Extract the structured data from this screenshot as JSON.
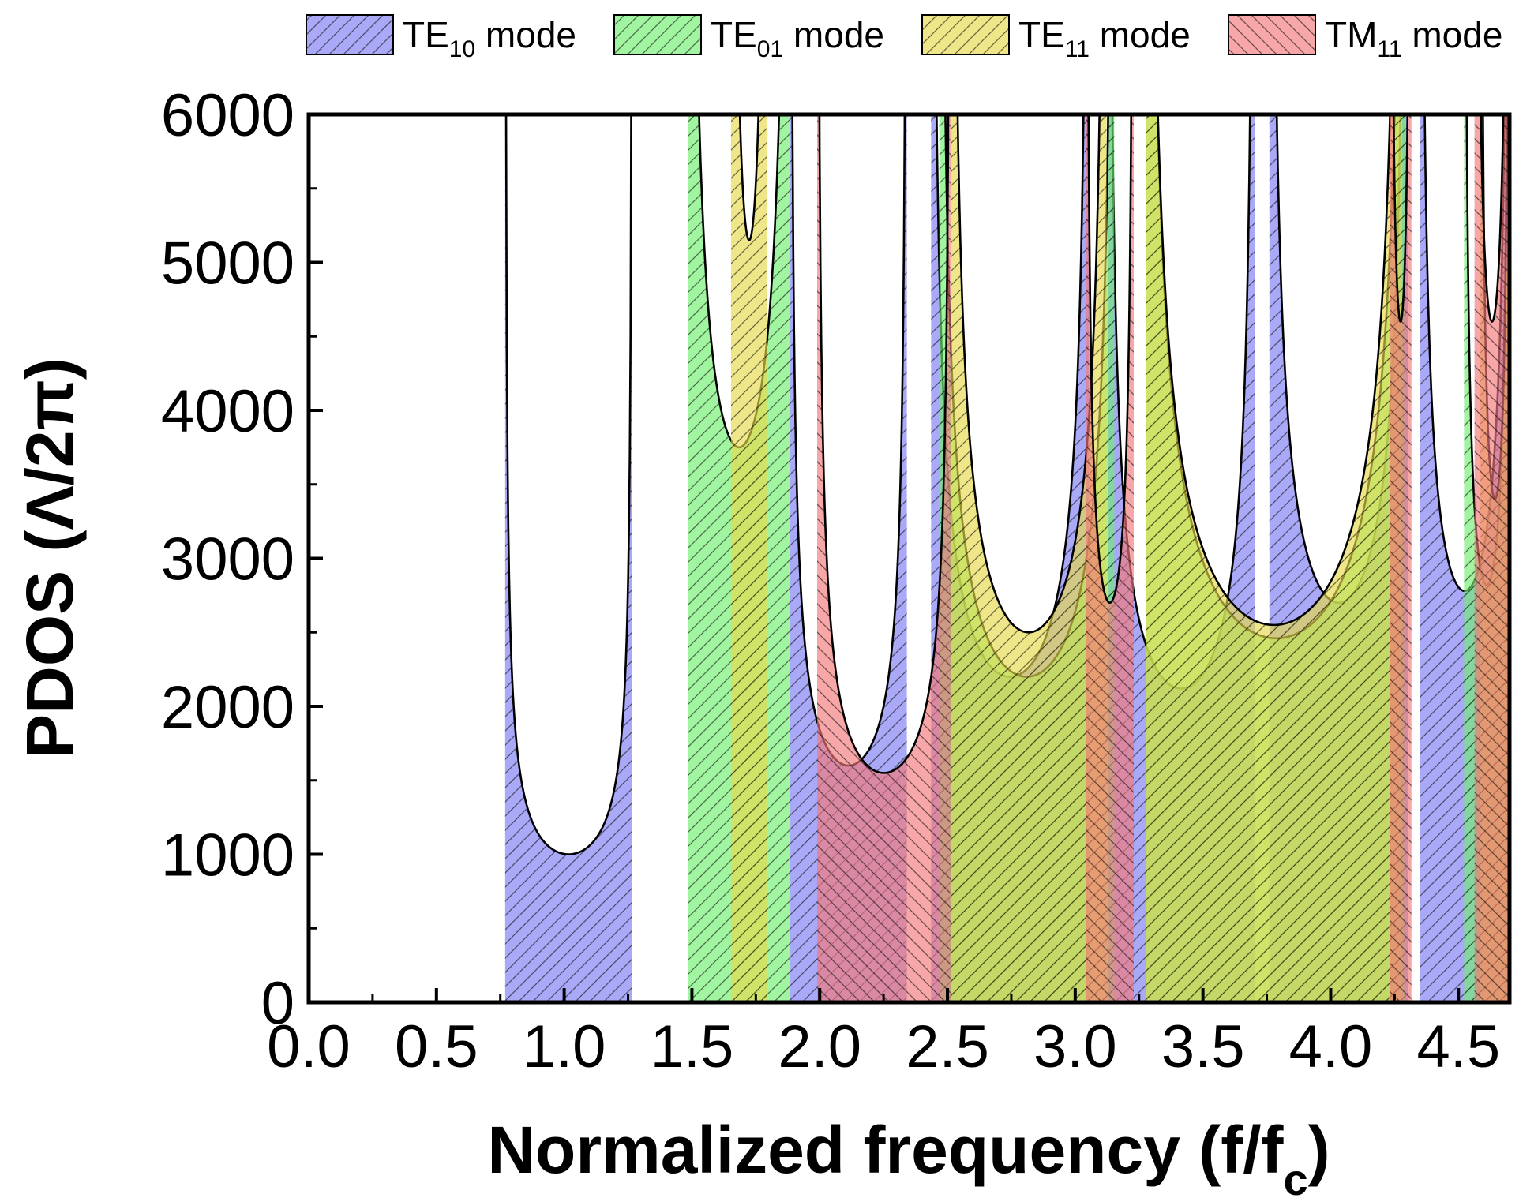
{
  "chart_data": {
    "type": "area",
    "xlabel": "Normalized frequency (f/f",
    "xlabel_sub": "c",
    "xlabel_end": ")",
    "ylabel": "PDOS (Λ/2π)",
    "xlim": [
      0.0,
      4.7
    ],
    "ylim": [
      0,
      6000
    ],
    "x_ticks": [
      0.0,
      0.5,
      1.0,
      1.5,
      2.0,
      2.5,
      3.0,
      3.5,
      4.0,
      4.5
    ],
    "x_tick_labels": [
      "0.0",
      "0.5",
      "1.0",
      "1.5",
      "2.0",
      "2.5",
      "3.0",
      "3.5",
      "4.0",
      "4.5"
    ],
    "y_ticks": [
      0,
      1000,
      2000,
      3000,
      4000,
      5000,
      6000
    ],
    "y_tick_labels": [
      "0",
      "1000",
      "2000",
      "3000",
      "4000",
      "5000",
      "6000"
    ],
    "legend_position": "top",
    "series": [
      {
        "name": "TE10 mode",
        "label_main": "TE",
        "label_sub": "10",
        "label_end": " mode",
        "color": "#7b7bf2",
        "fill_opacity": 0.65,
        "hatch": "diag-up",
        "bands": [
          {
            "lo": 0.769,
            "hi": 1.266,
            "min": 1000
          },
          {
            "lo": 1.885,
            "hi": 2.341,
            "min": 1600
          },
          {
            "lo": 2.436,
            "hi": 3.054,
            "min": 2200
          },
          {
            "lo": 3.127,
            "hi": 3.703,
            "min": 2120
          },
          {
            "lo": 3.76,
            "hi": 4.302,
            "min": 2700
          },
          {
            "lo": 4.348,
            "hi": 4.7,
            "min": 2780
          }
        ]
      },
      {
        "name": "TE01 mode",
        "label_main": "TE",
        "label_sub": "01",
        "label_end": " mode",
        "color": "#6ef06e",
        "fill_opacity": 0.65,
        "hatch": "diag-up",
        "bands": [
          {
            "lo": 1.484,
            "hi": 1.885,
            "min": 3750
          },
          {
            "lo": 2.468,
            "hi": 3.153,
            "min": 2200
          },
          {
            "lo": 3.278,
            "hi": 4.295,
            "min": 2460
          },
          {
            "lo": 4.522,
            "hi": 4.7,
            "min": 2820
          }
        ]
      },
      {
        "name": "TE11 mode",
        "label_main": "TE",
        "label_sub": "11",
        "label_end": " mode",
        "color": "#e6d84a",
        "fill_opacity": 0.65,
        "hatch": "diag-up",
        "bands": [
          {
            "lo": 1.653,
            "hi": 1.795,
            "min": 5150
          },
          {
            "lo": 2.512,
            "hi": 3.123,
            "min": 2500
          },
          {
            "lo": 3.276,
            "hi": 4.28,
            "min": 2550
          },
          {
            "lo": 4.586,
            "hi": 4.7,
            "min": 3400
          }
        ]
      },
      {
        "name": "TM11 mode",
        "label_main": "TM",
        "label_sub": "11",
        "label_end": " mode",
        "color": "#f27878",
        "fill_opacity": 0.65,
        "hatch": "diag-down",
        "bands": [
          {
            "lo": 1.99,
            "hi": 2.512,
            "min": 1550
          },
          {
            "lo": 3.042,
            "hi": 3.229,
            "min": 2700
          },
          {
            "lo": 4.231,
            "hi": 4.316,
            "min": 4600
          },
          {
            "lo": 4.563,
            "hi": 4.7,
            "min": 4600
          }
        ]
      }
    ]
  }
}
